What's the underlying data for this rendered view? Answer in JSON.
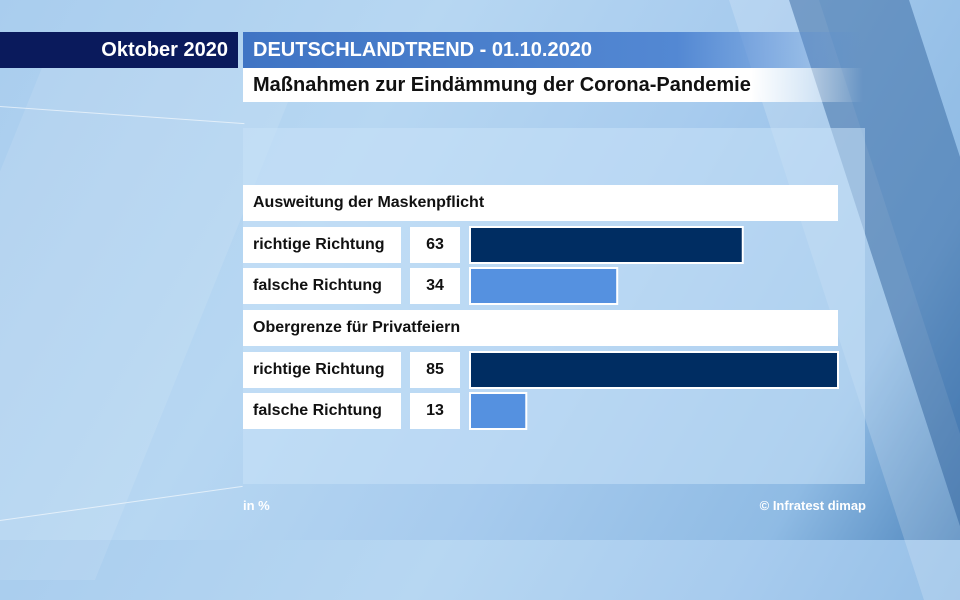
{
  "header": {
    "date_label": "Oktober 2020",
    "trend_title": "DEUTSCHLANDTREND - 01.10.2020",
    "subtitle": "Maßnahmen zur Eindämmung der Corona-Pandemie"
  },
  "footer": {
    "unit": "in %",
    "source": "© Infratest dimap"
  },
  "colors": {
    "right_direction": "#002d62",
    "wrong_direction": "#5591e0"
  },
  "chart_data": {
    "type": "bar",
    "orientation": "horizontal",
    "unit": "in %",
    "groups": [
      {
        "title": "Ausweitung der Maskenpflicht",
        "rows": [
          {
            "label": "richtige Richtung",
            "value": 63
          },
          {
            "label": "falsche Richtung",
            "value": 34
          }
        ]
      },
      {
        "title": "Obergrenze für Privatfeiern",
        "rows": [
          {
            "label": "richtige Richtung",
            "value": 85
          },
          {
            "label": "falsche Richtung",
            "value": 13
          }
        ]
      }
    ]
  }
}
